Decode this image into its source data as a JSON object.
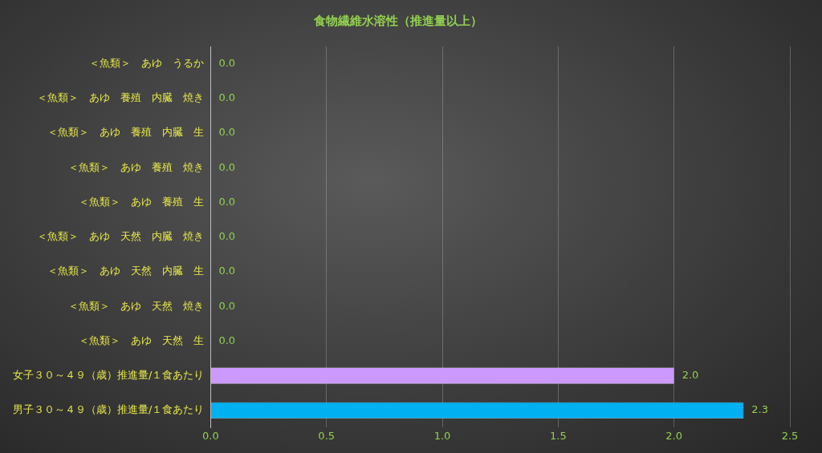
{
  "chart_data": {
    "type": "bar",
    "orientation": "horizontal",
    "title": "食物繊維水溶性（推進量以上）",
    "categories": [
      "＜魚類＞　あゆ　うるか",
      "＜魚類＞　あゆ　養殖　内臓　焼き",
      "＜魚類＞　あゆ　養殖　内臓　生",
      "＜魚類＞　あゆ　養殖　焼き",
      "＜魚類＞　あゆ　養殖　生",
      "＜魚類＞　あゆ　天然　内臓　焼き",
      "＜魚類＞　あゆ　天然　内臓　生",
      "＜魚類＞　あゆ　天然　焼き",
      "＜魚類＞　あゆ　天然　生",
      "女子３０～４９（歳）推進量/１食あたり",
      "男子３０～４９（歳）推進量/１食あたり"
    ],
    "values": [
      0,
      0,
      0,
      0,
      0,
      0,
      0,
      0,
      0,
      2.0,
      2.3
    ],
    "value_labels": [
      "0.0",
      "0.0",
      "0.0",
      "0.0",
      "0.0",
      "0.0",
      "0.0",
      "0.0",
      "0.0",
      "2.0",
      "2.3"
    ],
    "colors": [
      "#00b0f0",
      "#00b0f0",
      "#00b0f0",
      "#00b0f0",
      "#00b0f0",
      "#00b0f0",
      "#00b0f0",
      "#00b0f0",
      "#00b0f0",
      "#cc99ff",
      "#00b0f0"
    ],
    "xlim": [
      0,
      2.5
    ],
    "xticks": [
      {
        "value": 0,
        "label": "0.0"
      },
      {
        "value": 0.5,
        "label": "0.5"
      },
      {
        "value": 1,
        "label": "1.0"
      },
      {
        "value": 1.5,
        "label": "1.5"
      },
      {
        "value": 2,
        "label": "2.0"
      },
      {
        "value": 2.5,
        "label": "2.5"
      }
    ],
    "grid": "x",
    "legend": false
  }
}
